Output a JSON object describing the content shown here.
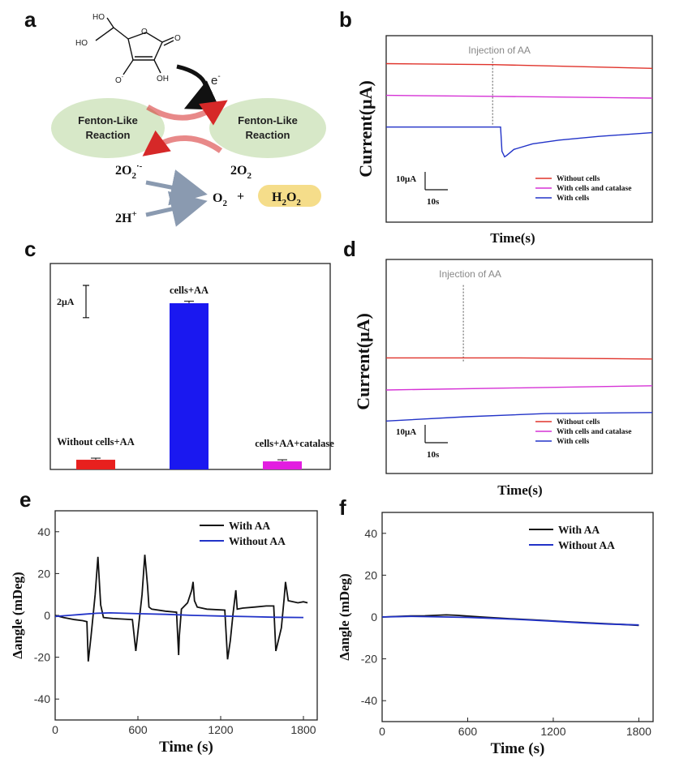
{
  "panel_labels": {
    "a": "a",
    "b": "b",
    "c": "c",
    "d": "d",
    "e": "e",
    "f": "f"
  },
  "scheme": {
    "left_bubble": [
      "Fenton-Like",
      "Reaction"
    ],
    "right_bubble": [
      "Fenton-Like",
      "Reaction"
    ],
    "electron": "e",
    "electron_sup": "-",
    "superoxide": "2O",
    "superoxide_sub": "2",
    "superoxide_sup": "·-",
    "oxygen_left": "2O",
    "oxygen_left_sub": "2",
    "proton": "2H",
    "proton_sup": "+",
    "o2": "O",
    "o2_sub": "2",
    "plus": "+",
    "h2o2_H": "H",
    "h2o2_sub1": "2",
    "h2o2_O": "O",
    "h2o2_sub2": "2",
    "mol_HO1": "HO",
    "mol_HO2": "HO",
    "mol_O_minus": "O",
    "mol_O_minus_sup": "-",
    "mol_OH": "OH",
    "mol_O_ring": "O",
    "mol_O_carbonyl": "O",
    "colors": {
      "bubble": "#d7e8c8",
      "arrow_red": "#d62828",
      "arrow_grey": "#8a9ab0",
      "h2o2_bg": "#f5dd8a"
    }
  },
  "chart_data": [
    {
      "id": "b",
      "type": "line",
      "ylabel": "Current(μA)",
      "xlabel": "Time(s)",
      "annotation": "Injection of AA",
      "scale_y": "10μA",
      "scale_x": "10s",
      "x_range": [
        0,
        100
      ],
      "y_range": [
        0,
        100
      ],
      "injection_x": 40,
      "series": [
        {
          "name": "Without cells",
          "color": "#e0332b",
          "x": [
            0,
            40,
            100
          ],
          "y": [
            85,
            84.5,
            82.5
          ]
        },
        {
          "name": "With cells and catalase",
          "color": "#d633d6",
          "x": [
            0,
            40,
            100
          ],
          "y": [
            68,
            67.5,
            66.5
          ]
        },
        {
          "name": "With cells",
          "color": "#2233c8",
          "x": [
            0,
            43,
            43.5,
            44.5,
            45.5,
            48,
            55,
            65,
            80,
            100
          ],
          "y": [
            51,
            51,
            38,
            35,
            36,
            39,
            42,
            44,
            46,
            48
          ]
        }
      ]
    },
    {
      "id": "c",
      "type": "bar",
      "scale": "2μA",
      "categories": [
        "Without cells+AA",
        "cells+AA",
        "cells+AA+catalase"
      ],
      "values": [
        0.6,
        10.3,
        0.5
      ],
      "errors": [
        0.05,
        0.08,
        0.05
      ],
      "colors": [
        "#e8201e",
        "#1a18f0",
        "#e21ee0"
      ],
      "y_range": [
        0,
        12
      ]
    },
    {
      "id": "d",
      "type": "line",
      "ylabel": "Current(μA)",
      "xlabel": "Time(s)",
      "annotation": "Injection of AA",
      "scale_y": "10μA",
      "scale_x": "10s",
      "x_range": [
        0,
        100
      ],
      "y_range": [
        0,
        100
      ],
      "injection_x": 29,
      "series": [
        {
          "name": "Without cells",
          "color": "#e0332b",
          "x": [
            0,
            50,
            100
          ],
          "y": [
            54,
            54,
            53.5
          ]
        },
        {
          "name": "With cells and catalase",
          "color": "#d633d6",
          "x": [
            0,
            50,
            100
          ],
          "y": [
            39,
            40,
            41
          ]
        },
        {
          "name": "With cells",
          "color": "#2233c8",
          "x": [
            0,
            30,
            60,
            100
          ],
          "y": [
            24.5,
            26.5,
            28,
            28.5
          ]
        }
      ]
    },
    {
      "id": "e",
      "type": "line",
      "xlabel": "Time (s)",
      "ylabel": "Δangle (mDeg)",
      "x_range": [
        0,
        1900
      ],
      "y_range": [
        -50,
        50
      ],
      "x_ticks": [
        0,
        600,
        1200,
        1800
      ],
      "y_ticks": [
        -40,
        -20,
        0,
        20,
        40
      ],
      "series": [
        {
          "name": "With AA",
          "color": "#111111",
          "x": [
            0,
            60,
            140,
            200,
            230,
            240,
            260,
            290,
            310,
            330,
            350,
            420,
            500,
            560,
            585,
            600,
            630,
            650,
            670,
            680,
            700,
            800,
            880,
            895,
            900,
            915,
            960,
            990,
            1000,
            1010,
            1030,
            1100,
            1230,
            1250,
            1270,
            1290,
            1310,
            1320,
            1360,
            1450,
            1530,
            1585,
            1600,
            1640,
            1660,
            1670,
            1690,
            1760,
            1800,
            1830
          ],
          "y": [
            0,
            -1,
            -2,
            -2.5,
            -3,
            -22,
            -10,
            10,
            28,
            5,
            -1,
            -1.5,
            -1.8,
            -2,
            -17,
            -8,
            10,
            29,
            14,
            4,
            3,
            2,
            1.5,
            -19,
            -10,
            3,
            6,
            12,
            16,
            7,
            4,
            3,
            2.5,
            -21,
            -12,
            1,
            12,
            3,
            3.5,
            4,
            4.5,
            4.5,
            -17,
            -6,
            8,
            16,
            7,
            6,
            6.5,
            6
          ]
        },
        {
          "name": "Without AA",
          "color": "#2233c8",
          "x": [
            0,
            100,
            200,
            300,
            400,
            600,
            800,
            1000,
            1200,
            1400,
            1600,
            1800
          ],
          "y": [
            -0.5,
            0,
            0.5,
            1,
            1.2,
            0.8,
            0.5,
            0,
            -0.3,
            -0.6,
            -0.9,
            -1
          ]
        }
      ]
    },
    {
      "id": "f",
      "type": "line",
      "xlabel": "Time (s)",
      "ylabel": "Δangle (mDeg)",
      "x_range": [
        0,
        1900
      ],
      "y_range": [
        -50,
        50
      ],
      "x_ticks": [
        0,
        600,
        1200,
        1800
      ],
      "y_ticks": [
        -40,
        -20,
        0,
        20,
        40
      ],
      "series": [
        {
          "name": "With AA",
          "color": "#111111",
          "x": [
            0,
            200,
            300,
            450,
            520,
            700,
            900,
            1100,
            1300,
            1500,
            1700,
            1800
          ],
          "y": [
            0,
            0.5,
            0.6,
            1,
            0.8,
            0,
            -0.8,
            -1.5,
            -2.3,
            -3,
            -3.6,
            -4
          ]
        },
        {
          "name": "Without AA",
          "color": "#2233c8",
          "x": [
            0,
            200,
            300,
            450,
            600,
            800,
            1000,
            1200,
            1400,
            1600,
            1800
          ],
          "y": [
            0,
            0.3,
            0.2,
            0,
            -0.2,
            -0.7,
            -1.3,
            -2,
            -2.8,
            -3.4,
            -3.8
          ]
        }
      ]
    }
  ]
}
